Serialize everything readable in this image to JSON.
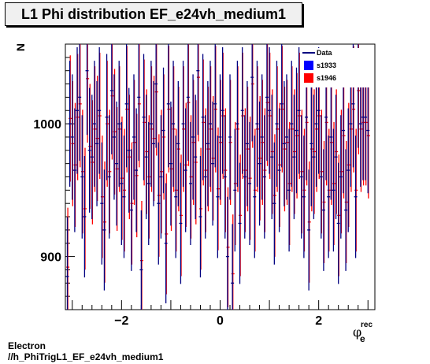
{
  "title": "L1 Phi distribution EF_e24vh_medium1",
  "footer": {
    "line1": "Electron",
    "line2": "//h_PhiTrigL1_EF_e24vh_medium1"
  },
  "chart_data": {
    "type": "scatter",
    "ylabel": "N",
    "xlabel_symbol": "φ",
    "xlabel_sub": "e",
    "xlabel_sup": "rec",
    "xlim": [
      -3.14,
      3.14
    ],
    "ylim": [
      860,
      1060
    ],
    "xticks": [
      -2,
      0,
      2
    ],
    "yticks": [
      900,
      1000
    ],
    "legend": [
      {
        "label": "Data",
        "color": "#000080",
        "marker": "line"
      },
      {
        "label": "s1933",
        "color": "#0000ff",
        "marker": "box"
      },
      {
        "label": "s1946",
        "color": "#ff0000",
        "marker": "box"
      }
    ],
    "x": [
      -3.1,
      -3.05,
      -3.0,
      -2.95,
      -2.9,
      -2.85,
      -2.8,
      -2.75,
      -2.7,
      -2.65,
      -2.6,
      -2.55,
      -2.5,
      -2.45,
      -2.4,
      -2.35,
      -2.3,
      -2.25,
      -2.2,
      -2.15,
      -2.1,
      -2.05,
      -2.0,
      -1.95,
      -1.9,
      -1.85,
      -1.8,
      -1.75,
      -1.7,
      -1.65,
      -1.6,
      -1.55,
      -1.5,
      -1.45,
      -1.4,
      -1.35,
      -1.3,
      -1.25,
      -1.2,
      -1.15,
      -1.1,
      -1.05,
      -1.0,
      -0.95,
      -0.9,
      -0.85,
      -0.8,
      -0.75,
      -0.7,
      -0.65,
      -0.6,
      -0.55,
      -0.5,
      -0.45,
      -0.4,
      -0.35,
      -0.3,
      -0.25,
      -0.2,
      -0.15,
      -0.1,
      -0.05,
      0.0,
      0.05,
      0.1,
      0.15,
      0.2,
      0.25,
      0.3,
      0.35,
      0.4,
      0.45,
      0.5,
      0.55,
      0.6,
      0.65,
      0.7,
      0.75,
      0.8,
      0.85,
      0.9,
      0.95,
      1.0,
      1.05,
      1.1,
      1.15,
      1.2,
      1.25,
      1.3,
      1.35,
      1.4,
      1.45,
      1.5,
      1.55,
      1.6,
      1.65,
      1.7,
      1.75,
      1.8,
      1.85,
      1.9,
      1.95,
      2.0,
      2.05,
      2.1,
      2.15,
      2.2,
      2.25,
      2.3,
      2.35,
      2.4,
      2.45,
      2.5,
      2.55,
      2.6,
      2.65,
      2.7,
      2.75,
      2.8,
      2.85,
      2.9,
      2.95,
      3.0,
      3.05,
      3.1
    ],
    "series": [
      {
        "name": "Data",
        "color": "#000080",
        "y": [
          885,
          1000,
          990,
          965,
          1010,
          1020,
          960,
          930,
          1040,
          980,
          975,
          1000,
          985,
          1010,
          940,
          920,
          1005,
          960,
          1025,
          990,
          970,
          1000,
          955,
          945,
          1015,
          980,
          935,
          990,
          965,
          1020,
          890,
          1005,
          975,
          955,
          1000,
          985,
          1030,
          940,
          960,
          995,
          910,
          1015,
          970,
          1000,
          945,
          985,
          925,
          1000,
          965,
          1020,
          955,
          990,
          975,
          1040,
          930,
          1005,
          960,
          985,
          1000,
          970,
          1015,
          945,
          990,
          1010,
          960,
          900,
          990,
          880,
          950,
          1000,
          925,
          1010,
          960,
          985,
          955,
          1035,
          945,
          1000,
          970,
          990,
          960,
          1020,
          1010,
          975,
          940,
          1000,
          965,
          1015,
          985,
          990,
          950,
          1000,
          975,
          995,
          1010,
          960,
          945,
          1005,
          920,
          985,
          975,
          1000,
          1010,
          960,
          935,
          1005,
          945,
          990,
          950,
          975,
          925,
          960,
          995,
          935,
          965,
          1000,
          1015,
          945,
          1030,
          1000,
          1005,
          1005,
          995
        ]
      },
      {
        "name": "s1946",
        "color": "#ff0000",
        "y": [
          892,
          1004,
          985,
          969,
          1005,
          1015,
          964,
          936,
          1034,
          983,
          971,
          996,
          989,
          1006,
          945,
          926,
          1000,
          964,
          1021,
          994,
          966,
          996,
          959,
          950,
          1011,
          975,
          940,
          986,
          961,
          1015,
          897,
          1001,
          979,
          960,
          996,
          989,
          1024,
          946,
          964,
          990,
          917,
          1011,
          966,
          996,
          950,
          981,
          931,
          996,
          969,
          1016,
          960,
          986,
          971,
          1035,
          936,
          1001,
          965,
          981,
          996,
          974,
          1011,
          951,
          986,
          1006,
          965,
          907,
          986,
          887,
          955,
          996,
          931,
          1006,
          965,
          981,
          959,
          1030,
          950,
          996,
          974,
          986,
          965,
          1016,
          1006,
          979,
          946,
          996,
          969,
          1011,
          981,
          986,
          955,
          996,
          979,
          991,
          1006,
          964,
          950,
          1001,
          926,
          981,
          979,
          996,
          1006,
          964,
          941,
          1001,
          950,
          986,
          955,
          979,
          931,
          964,
          991,
          941,
          969,
          996,
          1011,
          950,
          1025,
          996,
          1001,
          1001,
          991
        ]
      }
    ]
  }
}
